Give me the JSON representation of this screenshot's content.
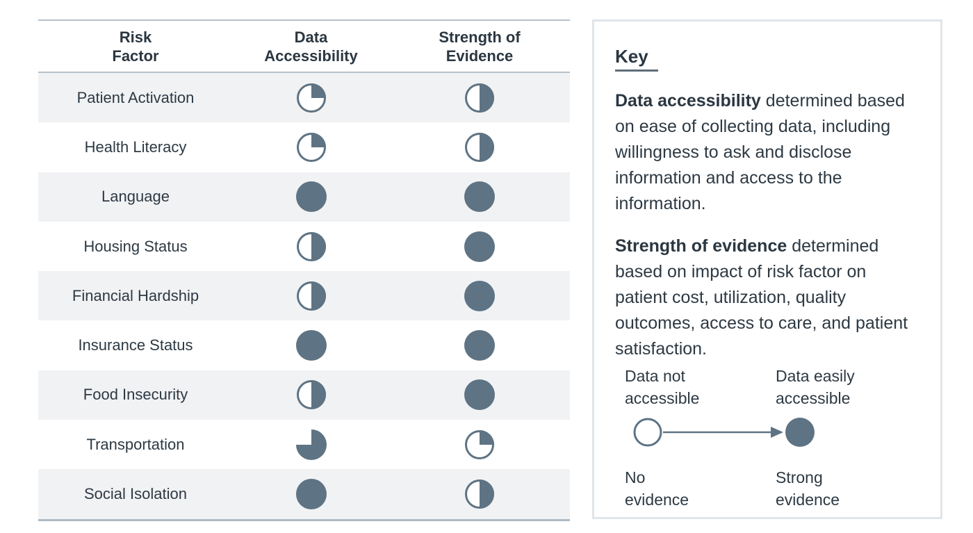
{
  "colors": {
    "ball": "#5e7383",
    "text": "#2d3943",
    "stripe": "#f1f2f4",
    "table_border": "#b6c0c8",
    "key_border": "#dfe5e9"
  },
  "table": {
    "headers": [
      {
        "text": "Risk\nFactor"
      },
      {
        "text": "Data\nAccessibility"
      },
      {
        "text": "Strength of\nEvidence"
      }
    ]
  },
  "key": {
    "title": "Key",
    "paragraphs": [
      {
        "bold": "Data accessibility",
        "rest": " determined based on ease of collecting data, including willingness to ask and disclose information and access to the information."
      },
      {
        "bold": "Strength of evidence",
        "rest": " determined based on impact of risk factor on patient cost, utilization, quality outcomes, access to care, and patient satisfaction."
      }
    ],
    "legend": {
      "top_left": "Data not\naccessible",
      "top_right": "Data easily\naccessible",
      "bottom_left": "No\nevidence",
      "bottom_right": "Strong\nevidence"
    }
  },
  "chart_data": {
    "type": "table",
    "columns": [
      "Risk Factor",
      "Data Accessibility",
      "Strength of Evidence"
    ],
    "value_encoding": "harvey_ball_fraction_0_to_1",
    "rows": [
      {
        "risk_factor": "Patient Activation",
        "data_accessibility": 0.25,
        "strength_of_evidence": 0.5
      },
      {
        "risk_factor": "Health Literacy",
        "data_accessibility": 0.25,
        "strength_of_evidence": 0.5
      },
      {
        "risk_factor": "Language",
        "data_accessibility": 1,
        "strength_of_evidence": 1
      },
      {
        "risk_factor": "Housing Status",
        "data_accessibility": 0.5,
        "strength_of_evidence": 1
      },
      {
        "risk_factor": "Financial Hardship",
        "data_accessibility": 0.5,
        "strength_of_evidence": 1
      },
      {
        "risk_factor": "Insurance Status",
        "data_accessibility": 1,
        "strength_of_evidence": 1
      },
      {
        "risk_factor": "Food Insecurity",
        "data_accessibility": 0.5,
        "strength_of_evidence": 1
      },
      {
        "risk_factor": "Transportation",
        "data_accessibility": 0.75,
        "strength_of_evidence": 0.25
      },
      {
        "risk_factor": "Social Isolation",
        "data_accessibility": 1,
        "strength_of_evidence": 0.5
      }
    ],
    "legend": {
      "data_accessibility_scale": {
        "empty_ball": "Data not accessible",
        "full_ball": "Data easily accessible"
      },
      "strength_of_evidence_scale": {
        "empty_ball": "No evidence",
        "full_ball": "Strong evidence"
      }
    }
  }
}
